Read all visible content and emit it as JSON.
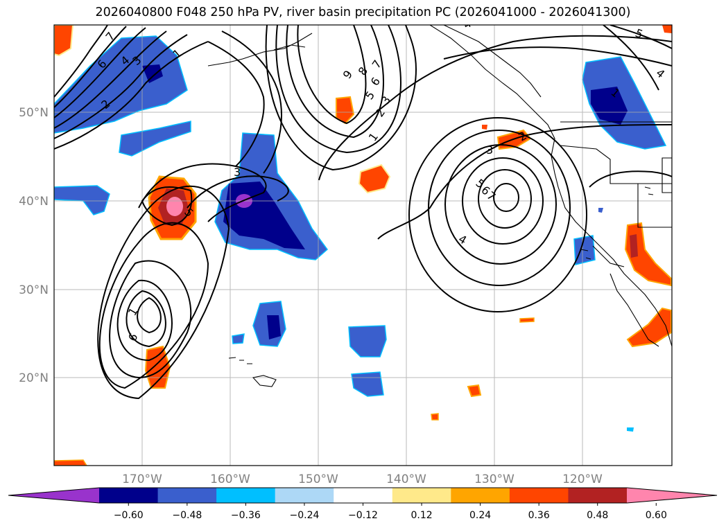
{
  "title": "2026040800 F048 250 hPa PV, river basin precipitation PC (2026041000 - 2026041300)",
  "map": {
    "lat_labels": [
      "50°N",
      "40°N",
      "30°N",
      "20°N"
    ],
    "lon_labels": [
      "170°W",
      "160°W",
      "150°W",
      "140°W",
      "130°W",
      "120°W"
    ],
    "pv_contour_labels": [
      "7",
      "6",
      "4",
      "3",
      "1",
      "2",
      "9",
      "8",
      "7",
      "6",
      "5",
      "3",
      "2",
      "1",
      "5",
      "4",
      "1",
      "3",
      "4",
      "3",
      "2",
      "5",
      "6",
      "7",
      "4",
      "1",
      "6",
      "5"
    ],
    "precip_pc_levels": [
      -0.6,
      -0.48,
      -0.36,
      -0.24,
      -0.12,
      0.12,
      0.24,
      0.36,
      0.48,
      0.6
    ]
  },
  "colorbar": {
    "tick_labels": [
      "−0.60",
      "−0.48",
      "−0.36",
      "−0.24",
      "−0.12",
      "0.12",
      "0.24",
      "0.36",
      "0.48",
      "0.60"
    ],
    "colors": [
      "#9933cc",
      "#00008b",
      "#3a5fcd",
      "#00bfff",
      "#add8f6",
      "#ffffff",
      "#ffe98a",
      "#ffa500",
      "#ff4500",
      "#b22222",
      "#ff85ad"
    ]
  }
}
